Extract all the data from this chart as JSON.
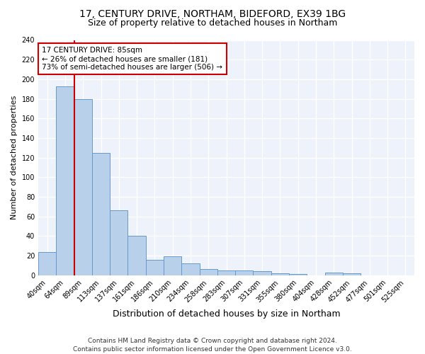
{
  "title1": "17, CENTURY DRIVE, NORTHAM, BIDEFORD, EX39 1BG",
  "title2": "Size of property relative to detached houses in Northam",
  "xlabel": "Distribution of detached houses by size in Northam",
  "ylabel": "Number of detached properties",
  "bar_labels": [
    "40sqm",
    "64sqm",
    "89sqm",
    "113sqm",
    "137sqm",
    "161sqm",
    "186sqm",
    "210sqm",
    "234sqm",
    "258sqm",
    "283sqm",
    "307sqm",
    "331sqm",
    "355sqm",
    "380sqm",
    "404sqm",
    "428sqm",
    "452sqm",
    "477sqm",
    "501sqm",
    "525sqm"
  ],
  "bar_values": [
    24,
    193,
    180,
    125,
    66,
    40,
    16,
    19,
    12,
    6,
    5,
    5,
    4,
    2,
    1,
    0,
    3,
    2,
    0,
    0,
    0
  ],
  "bar_color": "#b8d0ea",
  "bar_edge_color": "#6699cc",
  "red_line_color": "#cc0000",
  "annotation_text": "17 CENTURY DRIVE: 85sqm\n← 26% of detached houses are smaller (181)\n73% of semi-detached houses are larger (506) →",
  "annotation_box_color": "white",
  "annotation_box_edge": "#cc0000",
  "ylim": [
    0,
    240
  ],
  "yticks": [
    0,
    20,
    40,
    60,
    80,
    100,
    120,
    140,
    160,
    180,
    200,
    220,
    240
  ],
  "footer_line1": "Contains HM Land Registry data © Crown copyright and database right 2024.",
  "footer_line2": "Contains public sector information licensed under the Open Government Licence v3.0.",
  "bg_color": "#eef2fb",
  "grid_color": "white",
  "title1_fontsize": 10,
  "title2_fontsize": 9,
  "xlabel_fontsize": 9,
  "ylabel_fontsize": 8,
  "tick_fontsize": 7,
  "annotation_fontsize": 7.5,
  "footer_fontsize": 6.5
}
